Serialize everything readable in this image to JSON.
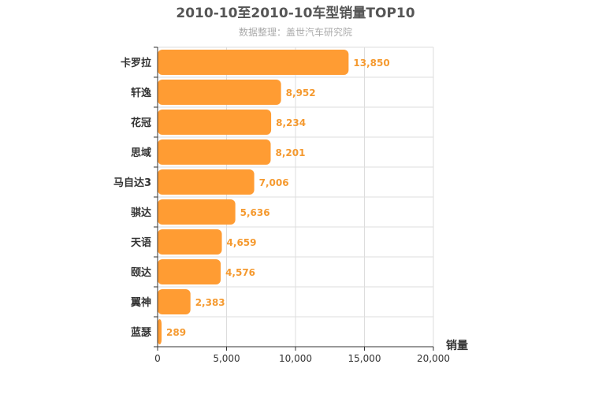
{
  "chart_data": {
    "type": "bar",
    "orientation": "horizontal",
    "title": "2010-10至2010-10车型销量TOP10",
    "subtitle": "数据整理：盖世汽车研究院",
    "xlabel": "销量",
    "categories": [
      "卡罗拉",
      "轩逸",
      "花冠",
      "思域",
      "马自达3",
      "骐达",
      "天语",
      "颐达",
      "翼神",
      "蓝瑟"
    ],
    "values": [
      13850,
      8952,
      8234,
      8201,
      7006,
      5636,
      4659,
      4576,
      2383,
      289
    ],
    "value_labels": [
      "13,850",
      "8,952",
      "8,234",
      "8,201",
      "7,006",
      "5,636",
      "4,659",
      "4,576",
      "2,383",
      "289"
    ],
    "xlim": [
      0,
      20000
    ],
    "xticks": [
      0,
      5000,
      10000,
      15000,
      20000
    ],
    "xtick_labels": [
      "0",
      "5,000",
      "10,000",
      "15,000",
      "20,000"
    ],
    "grid": true,
    "bar_color": "#ff9c33",
    "label_color": "#f59a30"
  }
}
